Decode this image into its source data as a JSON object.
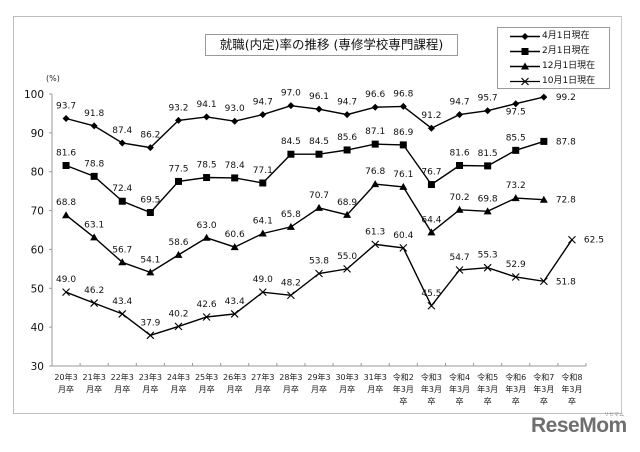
{
  "chart_data": {
    "type": "line",
    "title": "就職(内定)率の推移 (専修学校専門課程)",
    "ylabel": "(%)",
    "xlabel": "",
    "ylim": [
      30,
      100
    ],
    "yticks": [
      30,
      40,
      50,
      60,
      70,
      80,
      90,
      100
    ],
    "grid": false,
    "legend_position": "top-right",
    "categories": [
      "20年3月卒",
      "21年3月卒",
      "22年3月卒",
      "23年3月卒",
      "24年3月卒",
      "25年3月卒",
      "26年3月卒",
      "27年3月卒",
      "28年3月卒",
      "29年3月卒",
      "30年3月卒",
      "31年3月卒",
      "令和2年3月卒",
      "令和3年3月卒",
      "令和4年3月卒",
      "令和5年3月卒",
      "令和6年3月卒",
      "令和7年3月卒",
      "令和8年3月卒"
    ],
    "category_labels": [
      [
        "20年3",
        "月卒"
      ],
      [
        "21年3",
        "月卒"
      ],
      [
        "22年3",
        "月卒"
      ],
      [
        "23年3",
        "月卒"
      ],
      [
        "24年3",
        "月卒"
      ],
      [
        "25年3",
        "月卒"
      ],
      [
        "26年3",
        "月卒"
      ],
      [
        "27年3",
        "月卒"
      ],
      [
        "28年3",
        "月卒"
      ],
      [
        "29年3",
        "月卒"
      ],
      [
        "30年3",
        "月卒"
      ],
      [
        "31年3",
        "月卒"
      ],
      [
        "令和2",
        "年3月",
        "卒"
      ],
      [
        "令和3",
        "年3月",
        "卒"
      ],
      [
        "令和4",
        "年3月",
        "卒"
      ],
      [
        "令和5",
        "年3月",
        "卒"
      ],
      [
        "令和6",
        "年3月",
        "卒"
      ],
      [
        "令和7",
        "年3月",
        "卒"
      ],
      [
        "令和8",
        "年3月",
        "卒"
      ]
    ],
    "series": [
      {
        "name": "4月1日現在",
        "marker": "diamond",
        "values": [
          93.7,
          91.8,
          87.4,
          86.2,
          93.2,
          94.1,
          93.0,
          94.7,
          97.0,
          96.1,
          94.7,
          96.6,
          96.8,
          91.2,
          94.7,
          95.7,
          97.5,
          99.2,
          null
        ]
      },
      {
        "name": "2月1日現在",
        "marker": "square",
        "values": [
          81.6,
          78.8,
          72.4,
          69.5,
          77.5,
          78.5,
          78.4,
          77.1,
          84.5,
          84.5,
          85.6,
          87.1,
          86.9,
          76.7,
          81.6,
          81.5,
          85.5,
          87.8,
          null
        ]
      },
      {
        "name": "12月1日現在",
        "marker": "triangle",
        "values": [
          68.8,
          63.1,
          56.7,
          54.1,
          58.6,
          63.0,
          60.6,
          64.1,
          65.8,
          70.7,
          68.9,
          76.8,
          76.1,
          64.4,
          70.2,
          69.8,
          73.2,
          72.8,
          null
        ]
      },
      {
        "name": "10月1日現在",
        "marker": "x",
        "values": [
          49.0,
          46.2,
          43.4,
          37.9,
          40.2,
          42.6,
          43.4,
          49.0,
          48.2,
          53.8,
          55.0,
          61.3,
          60.4,
          45.5,
          54.7,
          55.3,
          52.9,
          51.8,
          62.5
        ]
      }
    ],
    "label_offsets": {
      "4月1日現在": [
        [
          0,
          -10
        ],
        [
          0,
          -10
        ],
        [
          0,
          -10
        ],
        [
          0,
          -10
        ],
        [
          0,
          -10
        ],
        [
          0,
          -10
        ],
        [
          0,
          -10
        ],
        [
          0,
          -10
        ],
        [
          0,
          -10
        ],
        [
          0,
          -10
        ],
        [
          0,
          -10
        ],
        [
          0,
          -10
        ],
        [
          0,
          -10
        ],
        [
          0,
          -10
        ],
        [
          0,
          -10
        ],
        [
          0,
          -10
        ],
        [
          0,
          11
        ],
        [
          22,
          3
        ],
        [
          0,
          0
        ]
      ],
      "2月1日現在": [
        [
          0,
          -10
        ],
        [
          0,
          -10
        ],
        [
          0,
          -10
        ],
        [
          0,
          -10
        ],
        [
          0,
          -10
        ],
        [
          0,
          -10
        ],
        [
          0,
          -10
        ],
        [
          0,
          -10
        ],
        [
          0,
          -10
        ],
        [
          0,
          -10
        ],
        [
          0,
          -10
        ],
        [
          0,
          -10
        ],
        [
          0,
          -10
        ],
        [
          0,
          -10
        ],
        [
          0,
          -10
        ],
        [
          0,
          -10
        ],
        [
          0,
          -10
        ],
        [
          22,
          3
        ],
        [
          0,
          0
        ]
      ],
      "12月1日現在": [
        [
          0,
          -10
        ],
        [
          0,
          -10
        ],
        [
          0,
          -10
        ],
        [
          0,
          -10
        ],
        [
          0,
          -10
        ],
        [
          0,
          -10
        ],
        [
          0,
          -10
        ],
        [
          0,
          -10
        ],
        [
          0,
          -10
        ],
        [
          0,
          -10
        ],
        [
          0,
          -10
        ],
        [
          0,
          -10
        ],
        [
          0,
          -10
        ],
        [
          0,
          -10
        ],
        [
          0,
          -10
        ],
        [
          0,
          -10
        ],
        [
          0,
          -10
        ],
        [
          22,
          3
        ],
        [
          0,
          0
        ]
      ],
      "10月1日現在": [
        [
          0,
          -10
        ],
        [
          0,
          -10
        ],
        [
          0,
          -10
        ],
        [
          0,
          -10
        ],
        [
          0,
          -10
        ],
        [
          0,
          -10
        ],
        [
          0,
          -10
        ],
        [
          0,
          -10
        ],
        [
          0,
          -10
        ],
        [
          0,
          -10
        ],
        [
          0,
          -10
        ],
        [
          0,
          -10
        ],
        [
          0,
          -10
        ],
        [
          0,
          -10
        ],
        [
          0,
          -10
        ],
        [
          0,
          -10
        ],
        [
          0,
          -10
        ],
        [
          22,
          3
        ],
        [
          22,
          3
        ]
      ]
    }
  },
  "header": {
    "title": "就職(内定)率の推移 (専修学校専門課程)",
    "unit": "(%)"
  },
  "legend": {
    "items": [
      {
        "label": "4月1日現在",
        "marker": "diamond"
      },
      {
        "label": "2月1日現在",
        "marker": "square"
      },
      {
        "label": "12月1日現在",
        "marker": "triangle"
      },
      {
        "label": "10月1日現在",
        "marker": "x"
      }
    ]
  },
  "watermark": {
    "logo": "ReseMom",
    "ruby": "リセマム"
  },
  "colors": {
    "line": "#000000",
    "axis": "#9a9a9a",
    "logo": "#6f6f6f"
  }
}
